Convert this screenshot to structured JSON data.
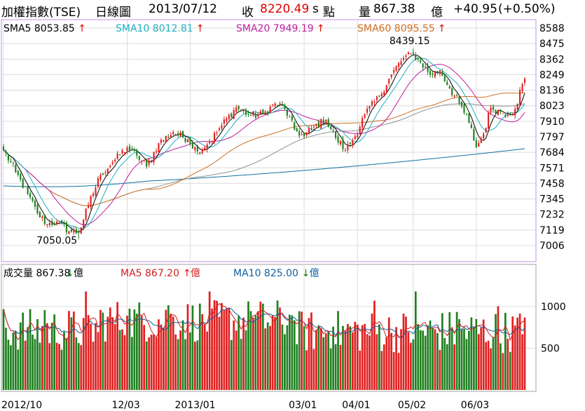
{
  "header": {
    "index_name": "加權指數(TSE)",
    "chart_kind": "日線圖",
    "date": "2013/07/12",
    "close_label": "收",
    "close_value": "8220.49",
    "unit_s": "s",
    "point_label": "點",
    "volume_label": "量",
    "volume_value": "867.38",
    "volume_unit": "億",
    "change": "+40.95",
    "change_pct": "(+0.50%)"
  },
  "colors": {
    "up": "#e02020",
    "down": "#208020",
    "sma5": "#000000",
    "sma10": "#20b0c0",
    "sma20": "#c020a0",
    "sma60": "#d07020",
    "sma120": "#909090",
    "sma240": "#1070a0",
    "vol_ma5": "#d02020",
    "vol_ma10": "#1060a0",
    "frame_price": "#c090e0",
    "frame_volume": "#a0a0a0",
    "text_red": "#e00000"
  },
  "legend_price": [
    {
      "label": "SMA5",
      "value": "8053.85",
      "arrow": "up",
      "color": "#000000"
    },
    {
      "label": "SMA10",
      "value": "8012.81",
      "arrow": "up",
      "color": "#20b0c0"
    },
    {
      "label": "SMA20",
      "value": "7949.19",
      "arrow": "up",
      "color": "#c020a0"
    },
    {
      "label": "SMA60",
      "value": "8095.55",
      "arrow": "up",
      "color": "#d07020"
    }
  ],
  "legend_volume": [
    {
      "label": "成交量",
      "value": "867.38",
      "arrow": "down",
      "unit": "億",
      "color": "#000000"
    },
    {
      "label": "MA5",
      "value": "867.20",
      "arrow": "up",
      "unit": "億",
      "color": "#d02020"
    },
    {
      "label": "MA10",
      "value": "825.00",
      "arrow": "down",
      "unit": "億",
      "color": "#1060a0"
    }
  ],
  "chart_data": {
    "type": "candlestick",
    "y_ticks": [
      "8588",
      "8475",
      "8362",
      "8249",
      "8136",
      "8023",
      "7910",
      "7797",
      "7684",
      "7571",
      "7458",
      "7345",
      "7232",
      "7119",
      "7006"
    ],
    "ylim": [
      6950,
      8620
    ],
    "x_ticks": [
      "2012/10",
      "12/03",
      "2013/01",
      "03/01",
      "04/01",
      "05/02",
      "06/03"
    ],
    "annotations": [
      {
        "text": "8439.15",
        "value": 8439.15
      },
      {
        "text": "7050.05",
        "value": 7050.05
      }
    ],
    "volume_ticks": [
      "1000",
      "500"
    ],
    "volume_ylim": [
      0,
      1300
    ],
    "anchors": [
      [
        0,
        7700
      ],
      [
        5,
        7540
      ],
      [
        10,
        7380
      ],
      [
        14,
        7240
      ],
      [
        18,
        7160
      ],
      [
        22,
        7180
      ],
      [
        27,
        7110
      ],
      [
        31,
        7100
      ],
      [
        35,
        7300
      ],
      [
        40,
        7520
      ],
      [
        46,
        7630
      ],
      [
        51,
        7720
      ],
      [
        55,
        7660
      ],
      [
        59,
        7580
      ],
      [
        64,
        7750
      ],
      [
        70,
        7830
      ],
      [
        76,
        7780
      ],
      [
        80,
        7690
      ],
      [
        85,
        7760
      ],
      [
        90,
        7880
      ],
      [
        96,
        8010
      ],
      [
        102,
        7950
      ],
      [
        107,
        7960
      ],
      [
        112,
        8040
      ],
      [
        116,
        8000
      ],
      [
        120,
        7850
      ],
      [
        124,
        7800
      ],
      [
        128,
        7870
      ],
      [
        133,
        7920
      ],
      [
        137,
        7790
      ],
      [
        141,
        7700
      ],
      [
        145,
        7800
      ],
      [
        149,
        7960
      ],
      [
        155,
        8090
      ],
      [
        160,
        8250
      ],
      [
        165,
        8370
      ],
      [
        169,
        8400
      ],
      [
        172,
        8340
      ],
      [
        176,
        8250
      ],
      [
        180,
        8280
      ],
      [
        184,
        8150
      ],
      [
        188,
        8040
      ],
      [
        192,
        7900
      ],
      [
        195,
        7720
      ],
      [
        198,
        7820
      ],
      [
        201,
        8010
      ],
      [
        205,
        7980
      ],
      [
        208,
        7960
      ],
      [
        211,
        8000
      ],
      [
        214,
        8180
      ],
      [
        215,
        8220.49
      ]
    ],
    "sma60_end": 8095.55,
    "sma240_end": 7710
  }
}
